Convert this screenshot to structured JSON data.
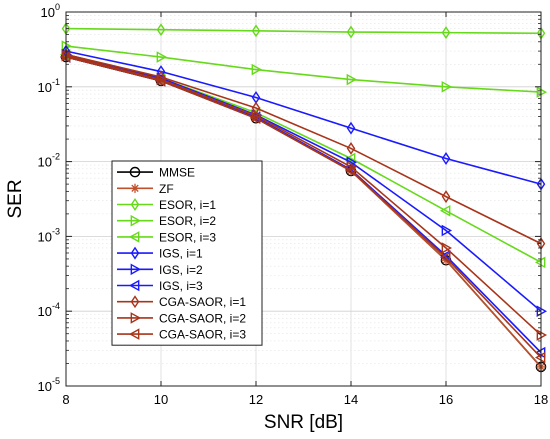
{
  "chart_data": {
    "type": "line",
    "xlabel": "SNR [dB]",
    "ylabel": "SER",
    "x": [
      8,
      10,
      12,
      14,
      16,
      18
    ],
    "xlim": [
      8,
      18
    ],
    "ylim": [
      1e-05,
      1
    ],
    "yscale": "log",
    "grid": true,
    "legend_position": "bottom-left",
    "x_ticks": [
      "8",
      "10",
      "12",
      "14",
      "16",
      "18"
    ],
    "y_ticks": [
      {
        "base": "10",
        "exp": "0"
      },
      {
        "base": "10",
        "exp": "-1"
      },
      {
        "base": "10",
        "exp": "-2"
      },
      {
        "base": "10",
        "exp": "-3"
      },
      {
        "base": "10",
        "exp": "-4"
      },
      {
        "base": "10",
        "exp": "-5"
      }
    ],
    "series": [
      {
        "name": "MMSE",
        "color": "#000000",
        "marker": "circle",
        "values": [
          0.25,
          0.12,
          0.038,
          0.0075,
          0.00048,
          1.8e-05
        ]
      },
      {
        "name": "ZF",
        "color": "#c0502a",
        "marker": "star",
        "values": [
          0.25,
          0.12,
          0.038,
          0.0075,
          0.00048,
          1.8e-05
        ]
      },
      {
        "name": "ESOR, i=1",
        "color": "#66d91a",
        "marker": "diamond",
        "values": [
          0.6,
          0.58,
          0.56,
          0.54,
          0.53,
          0.52
        ]
      },
      {
        "name": "ESOR, i=2",
        "color": "#66d91a",
        "marker": "triangle-right",
        "values": [
          0.35,
          0.25,
          0.17,
          0.125,
          0.1,
          0.085
        ]
      },
      {
        "name": "ESOR, i=3",
        "color": "#66d91a",
        "marker": "triangle-left",
        "values": [
          0.27,
          0.13,
          0.045,
          0.011,
          0.0022,
          0.00045
        ]
      },
      {
        "name": "IGS, i=1",
        "color": "#1a1aff",
        "marker": "diamond",
        "values": [
          0.3,
          0.16,
          0.072,
          0.028,
          0.011,
          0.005
        ]
      },
      {
        "name": "IGS, i=2",
        "color": "#1a1aff",
        "marker": "triangle-right",
        "values": [
          0.27,
          0.13,
          0.042,
          0.0098,
          0.0012,
          0.0001
        ]
      },
      {
        "name": "IGS, i=3",
        "color": "#1a1aff",
        "marker": "triangle-left",
        "values": [
          0.25,
          0.12,
          0.039,
          0.0078,
          0.00055,
          2.8e-05
        ]
      },
      {
        "name": "CGA-SAOR, i=1",
        "color": "#a8341a",
        "marker": "diamond",
        "values": [
          0.27,
          0.135,
          0.052,
          0.015,
          0.0034,
          0.0008
        ]
      },
      {
        "name": "CGA-SAOR, i=2",
        "color": "#a8341a",
        "marker": "triangle-right",
        "values": [
          0.26,
          0.125,
          0.041,
          0.0085,
          0.0007,
          4.8e-05
        ]
      },
      {
        "name": "CGA-SAOR, i=3",
        "color": "#a8341a",
        "marker": "triangle-left",
        "values": [
          0.25,
          0.12,
          0.038,
          0.0076,
          0.00052,
          2.4e-05
        ]
      }
    ]
  }
}
